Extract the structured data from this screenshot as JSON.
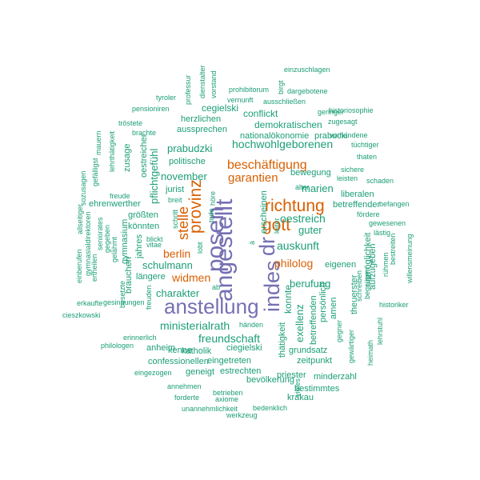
{
  "palette": {
    "teal": "#1b9e77",
    "orange": "#d95f02",
    "purple": "#7570b3"
  },
  "words": [
    {
      "text": "anstellung",
      "color": "purple"
    },
    {
      "text": "angestellt",
      "color": "purple"
    },
    {
      "text": "posen",
      "color": "purple"
    },
    {
      "text": "indes",
      "color": "purple"
    },
    {
      "text": "dr",
      "color": "purple"
    },
    {
      "text": "provinz",
      "color": "orange"
    },
    {
      "text": "richtung",
      "color": "orange"
    },
    {
      "text": "gott",
      "color": "orange"
    },
    {
      "text": "stelle",
      "color": "orange"
    },
    {
      "text": "beschäftigung",
      "color": "orange"
    },
    {
      "text": "garantien",
      "color": "orange"
    },
    {
      "text": "berlin",
      "color": "orange"
    },
    {
      "text": "widmen",
      "color": "orange"
    },
    {
      "text": "philolog",
      "color": "orange"
    },
    {
      "text": "hochwohlgeborenen",
      "color": "teal"
    },
    {
      "text": "oestreich",
      "color": "teal"
    },
    {
      "text": "auskunft",
      "color": "teal"
    },
    {
      "text": "ministerialrath",
      "color": "teal"
    },
    {
      "text": "freundschaft",
      "color": "teal"
    },
    {
      "text": "charakter",
      "color": "teal"
    },
    {
      "text": "schulmann",
      "color": "teal"
    },
    {
      "text": "berufung",
      "color": "teal"
    },
    {
      "text": "exellenz",
      "color": "teal"
    },
    {
      "text": "konnte",
      "color": "teal"
    },
    {
      "text": "marien",
      "color": "teal"
    },
    {
      "text": "guter",
      "color": "teal"
    },
    {
      "text": "prabudzki",
      "color": "teal"
    },
    {
      "text": "november",
      "color": "teal"
    },
    {
      "text": "pflichtgefühl",
      "color": "teal"
    },
    {
      "text": "demokratischen",
      "color": "teal"
    },
    {
      "text": "conflickt",
      "color": "teal"
    },
    {
      "text": "cegielski",
      "color": "teal"
    },
    {
      "text": "herzlichen",
      "color": "teal"
    },
    {
      "text": "aussprechen",
      "color": "teal"
    },
    {
      "text": "politische",
      "color": "teal"
    },
    {
      "text": "nationalökonomie",
      "color": "teal"
    },
    {
      "text": "prabucki",
      "color": "teal"
    },
    {
      "text": "bewegung",
      "color": "teal"
    },
    {
      "text": "liberalen",
      "color": "teal"
    },
    {
      "text": "betreffender",
      "color": "teal"
    },
    {
      "text": "eigenen",
      "color": "teal"
    },
    {
      "text": "unmöglichkeit",
      "color": "teal"
    },
    {
      "text": "aufzugeben",
      "color": "teal"
    },
    {
      "text": "theuerster",
      "color": "teal"
    },
    {
      "text": "betreffenden",
      "color": "teal"
    },
    {
      "text": "persönlich",
      "color": "teal"
    },
    {
      "text": "amen",
      "color": "teal"
    },
    {
      "text": "erscheinen",
      "color": "teal"
    },
    {
      "text": "confessionellen",
      "color": "teal"
    },
    {
      "text": "eingetreten",
      "color": "teal"
    },
    {
      "text": "geneigt",
      "color": "teal"
    },
    {
      "text": "estrechten",
      "color": "teal"
    },
    {
      "text": "katholik",
      "color": "teal"
    },
    {
      "text": "kenne",
      "color": "teal"
    },
    {
      "text": "anheim",
      "color": "teal"
    },
    {
      "text": "ciegielski",
      "color": "teal"
    },
    {
      "text": "längere",
      "color": "teal"
    },
    {
      "text": "brauchen",
      "color": "teal"
    },
    {
      "text": "gymnasium",
      "color": "teal"
    },
    {
      "text": "zusage",
      "color": "teal"
    },
    {
      "text": "oestreicher",
      "color": "teal"
    },
    {
      "text": "größten",
      "color": "teal"
    },
    {
      "text": "könnten",
      "color": "teal"
    },
    {
      "text": "ehrenwerther",
      "color": "teal"
    },
    {
      "text": "jahres",
      "color": "teal"
    },
    {
      "text": "jurist",
      "color": "teal"
    },
    {
      "text": "thätigkeit",
      "color": "teal"
    },
    {
      "text": "priester",
      "color": "teal"
    },
    {
      "text": "grundsatz",
      "color": "teal"
    },
    {
      "text": "zeitpunkt",
      "color": "teal"
    },
    {
      "text": "minderzahl",
      "color": "teal"
    },
    {
      "text": "bevölkerung",
      "color": "teal"
    },
    {
      "text": "bestimmtes",
      "color": "teal"
    },
    {
      "text": "krakau",
      "color": "teal"
    },
    {
      "text": "annehmen",
      "color": "teal"
    },
    {
      "text": "betrieben",
      "color": "teal"
    },
    {
      "text": "axiome",
      "color": "teal"
    },
    {
      "text": "forderte",
      "color": "teal"
    },
    {
      "text": "unannehmlichkeit",
      "color": "teal"
    },
    {
      "text": "bedenklich",
      "color": "teal"
    },
    {
      "text": "werkzeug",
      "color": "teal"
    },
    {
      "text": "eingezogen",
      "color": "teal"
    },
    {
      "text": "händen",
      "color": "teal"
    },
    {
      "text": "einzuschlagen",
      "color": "teal"
    },
    {
      "text": "prohibitorum",
      "color": "teal"
    },
    {
      "text": "dargebotene",
      "color": "teal"
    },
    {
      "text": "vernunft",
      "color": "teal"
    },
    {
      "text": "ausschließen",
      "color": "teal"
    },
    {
      "text": "geringer",
      "color": "teal"
    },
    {
      "text": "historiosophie",
      "color": "teal"
    },
    {
      "text": "zugesagt",
      "color": "teal"
    },
    {
      "text": "vorhandene",
      "color": "teal"
    },
    {
      "text": "tüchtiger",
      "color": "teal"
    },
    {
      "text": "thaten",
      "color": "teal"
    },
    {
      "text": "sichere",
      "color": "teal"
    },
    {
      "text": "leisten",
      "color": "teal"
    },
    {
      "text": "schaden",
      "color": "teal"
    },
    {
      "text": "alter",
      "color": "teal"
    },
    {
      "text": "fördere",
      "color": "teal"
    },
    {
      "text": "befangen",
      "color": "teal"
    },
    {
      "text": "gewesenen",
      "color": "teal"
    },
    {
      "text": "lästig",
      "color": "teal"
    },
    {
      "text": "bestreiten",
      "color": "teal"
    },
    {
      "text": "willensmeinung",
      "color": "teal"
    },
    {
      "text": "rühmen",
      "color": "teal"
    },
    {
      "text": "begnügen",
      "color": "teal"
    },
    {
      "text": "schreiben",
      "color": "teal"
    },
    {
      "text": "historiker",
      "color": "teal"
    },
    {
      "text": "lehrstuhl",
      "color": "teal"
    },
    {
      "text": "heimath",
      "color": "teal"
    },
    {
      "text": "gewärtiger",
      "color": "teal"
    },
    {
      "text": "gegner",
      "color": "teal"
    },
    {
      "text": "vieles",
      "color": "teal"
    },
    {
      "text": "tyroler",
      "color": "teal"
    },
    {
      "text": "pensioniren",
      "color": "teal"
    },
    {
      "text": "tröstete",
      "color": "teal"
    },
    {
      "text": "brachte",
      "color": "teal"
    },
    {
      "text": "professur",
      "color": "teal"
    },
    {
      "text": "dienstalter",
      "color": "teal"
    },
    {
      "text": "vorstand",
      "color": "teal"
    },
    {
      "text": "birgt",
      "color": "teal"
    },
    {
      "text": "mauern",
      "color": "teal"
    },
    {
      "text": "lehrthätigkeit",
      "color": "teal"
    },
    {
      "text": "sozusagen",
      "color": "teal"
    },
    {
      "text": "gefälligst",
      "color": "teal"
    },
    {
      "text": "freude",
      "color": "teal"
    },
    {
      "text": "allseitiger",
      "color": "teal"
    },
    {
      "text": "gymnasialdirektoren",
      "color": "teal"
    },
    {
      "text": "seniorates",
      "color": "teal"
    },
    {
      "text": "gegeben",
      "color": "teal"
    },
    {
      "text": "gelähmt",
      "color": "teal"
    },
    {
      "text": "einberufen",
      "color": "teal"
    },
    {
      "text": "ertheilen",
      "color": "teal"
    },
    {
      "text": "erkaufte",
      "color": "teal"
    },
    {
      "text": "besetzte",
      "color": "teal"
    },
    {
      "text": "freuden",
      "color": "teal"
    },
    {
      "text": "vitae",
      "color": "teal"
    },
    {
      "text": "blickt",
      "color": "teal"
    },
    {
      "text": "lobt",
      "color": "teal"
    },
    {
      "text": "ab",
      "color": "teal"
    },
    {
      "text": "breit",
      "color": "teal"
    },
    {
      "text": "höre",
      "color": "teal"
    },
    {
      "text": "tode",
      "color": "teal"
    },
    {
      "text": "schritt",
      "color": "teal"
    },
    {
      "text": "leiter",
      "color": "teal"
    },
    {
      "text": "ä",
      "color": "teal"
    },
    {
      "text": "cieszkowski",
      "color": "teal"
    },
    {
      "text": "gesinnungen",
      "color": "teal"
    },
    {
      "text": "erinnerlich",
      "color": "teal"
    },
    {
      "text": "philologen",
      "color": "teal"
    }
  ]
}
